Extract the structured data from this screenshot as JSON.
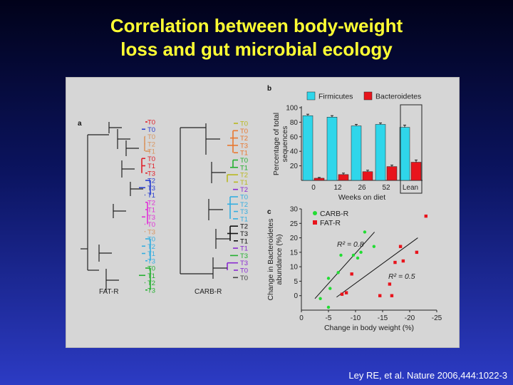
{
  "slide": {
    "title_line1": "Correlation between body-weight",
    "title_line2": "loss and gut microbial ecology",
    "citation": "Ley RE, et al. Nature 2006,444:1022-3"
  },
  "panel_a": {
    "label": "a",
    "fat_r": {
      "name": "FAT-R",
      "leaves": [
        {
          "t": "T0",
          "c": "#e0202a"
        },
        {
          "t": "T0",
          "c": "#2a3fd0"
        },
        {
          "t": "T0",
          "c": "#d89560"
        },
        {
          "t": "T2",
          "c": "#d89560"
        },
        {
          "t": "T1",
          "c": "#d89560"
        },
        {
          "t": "T0",
          "c": "#e0202a"
        },
        {
          "t": "T1",
          "c": "#e0202a"
        },
        {
          "t": "T3",
          "c": "#e0202a"
        },
        {
          "t": "T2",
          "c": "#2a3fd0"
        },
        {
          "t": "T3",
          "c": "#2a3fd0"
        },
        {
          "t": "T1",
          "c": "#2a3fd0"
        },
        {
          "t": "T2",
          "c": "#e030d8"
        },
        {
          "t": "T1",
          "c": "#e030d8"
        },
        {
          "t": "T3",
          "c": "#e030d8"
        },
        {
          "t": "T0",
          "c": "#e030d8"
        },
        {
          "t": "T3",
          "c": "#d89560"
        },
        {
          "t": "T0",
          "c": "#35aee0"
        },
        {
          "t": "T2",
          "c": "#35aee0"
        },
        {
          "t": "T1",
          "c": "#35aee0"
        },
        {
          "t": "T3",
          "c": "#35aee0"
        },
        {
          "t": "T0",
          "c": "#25b030"
        },
        {
          "t": "T1",
          "c": "#25b030"
        },
        {
          "t": "T2",
          "c": "#25b030"
        },
        {
          "t": "T3",
          "c": "#25b030"
        }
      ]
    },
    "carb_r": {
      "name": "CARB-R",
      "leaves": [
        {
          "t": "T0",
          "c": "#b8b820"
        },
        {
          "t": "T0",
          "c": "#e87830"
        },
        {
          "t": "T2",
          "c": "#e87830"
        },
        {
          "t": "T3",
          "c": "#e87830"
        },
        {
          "t": "T1",
          "c": "#e87830"
        },
        {
          "t": "T0",
          "c": "#25b030"
        },
        {
          "t": "T1",
          "c": "#25b030"
        },
        {
          "t": "T2",
          "c": "#b8b820"
        },
        {
          "t": "T1",
          "c": "#b8b820"
        },
        {
          "t": "T2",
          "c": "#8a2ad0"
        },
        {
          "t": "T0",
          "c": "#35aee0"
        },
        {
          "t": "T2",
          "c": "#35aee0"
        },
        {
          "t": "T3",
          "c": "#35aee0"
        },
        {
          "t": "T1",
          "c": "#35aee0"
        },
        {
          "t": "T2",
          "c": "#111111"
        },
        {
          "t": "T3",
          "c": "#111111"
        },
        {
          "t": "T1",
          "c": "#111111"
        },
        {
          "t": "T1",
          "c": "#8a2ad0"
        },
        {
          "t": "T3",
          "c": "#25b030"
        },
        {
          "t": "T3",
          "c": "#8a2ad0"
        },
        {
          "t": "T0",
          "c": "#8a2ad0"
        },
        {
          "t": "T0",
          "c": "#444444"
        }
      ]
    }
  },
  "chart_data": [
    {
      "panel": "b",
      "type": "bar",
      "categories": [
        "0",
        "12",
        "26",
        "52",
        "Lean"
      ],
      "xlabel": "Weeks on diet",
      "ylabel": "Percentage of total sequences",
      "ylim": [
        0,
        100
      ],
      "yticks": [
        20,
        40,
        60,
        80,
        100
      ],
      "legend_placement": "top",
      "series": [
        {
          "name": "Firmicutes",
          "color": "#2fd6ea",
          "values": [
            89,
            87,
            75,
            77,
            73
          ],
          "errors": [
            2,
            2,
            2,
            2,
            3
          ]
        },
        {
          "name": "Bacteroidetes",
          "color": "#e8141c",
          "values": [
            3,
            8,
            12,
            19,
            25
          ],
          "errors": [
            1,
            2,
            2,
            2,
            3
          ]
        }
      ]
    },
    {
      "panel": "c",
      "type": "scatter",
      "xlabel": "Change in body weight (%)",
      "ylabel": "Change in Bacteroidetes abundance (%)",
      "xlim": [
        0,
        -25
      ],
      "ylim": [
        -5,
        30
      ],
      "xticks": [
        0,
        -5,
        -10,
        -15,
        -20,
        -25
      ],
      "yticks": [
        0,
        5,
        10,
        15,
        20,
        25,
        30
      ],
      "legend_placement": "top-left",
      "series": [
        {
          "name": "CARB-R",
          "color": "#22dd33",
          "r2_label": "R² = 0.8",
          "x": [
            -3.5,
            -5,
            -5.3,
            -6.8,
            -7.3,
            -9.6,
            -10.4,
            -11,
            -11.7,
            -13.4,
            -5
          ],
          "y": [
            -1,
            6,
            2.5,
            8,
            14,
            14,
            13,
            15,
            22,
            17,
            -4
          ],
          "fit": {
            "x1": -2.5,
            "y1": -1,
            "x2": -13.5,
            "y2": 22
          }
        },
        {
          "name": "FAT-R",
          "color": "#e8141c",
          "r2_label": "R² = 0.5",
          "x": [
            -7.5,
            -8.3,
            -9.3,
            -14.5,
            -16.3,
            -16.7,
            -17.3,
            -18.3,
            -18.8,
            -21.3,
            -23
          ],
          "y": [
            0.5,
            1,
            7.5,
            0,
            4,
            0,
            11.5,
            17,
            12,
            15,
            27.5
          ],
          "fit": {
            "x1": -6.5,
            "y1": -0.5,
            "x2": -21.5,
            "y2": 20
          }
        }
      ]
    }
  ],
  "panel_b": {
    "label": "b"
  },
  "panel_c": {
    "label": "c"
  }
}
